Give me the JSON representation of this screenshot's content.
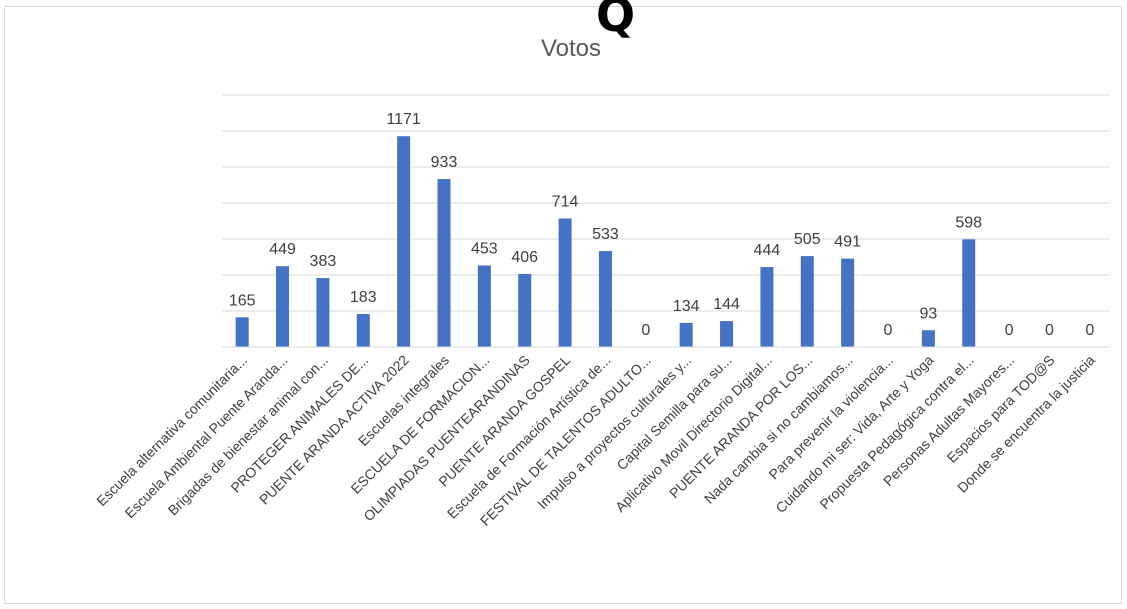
{
  "top_glyph": "Q",
  "chart_data": {
    "type": "bar",
    "title": "Votos",
    "xlabel": "",
    "ylabel": "",
    "ylim": [
      0,
      1400
    ],
    "grid": true,
    "legend": "none",
    "bar_color": "#4472c4",
    "categories": [
      "Escuela alternativa comunitaria...",
      "Escuela Ambiental Puente Aranda...",
      "Brigadas de bienestar animal con...",
      "PROTEGER ANIMALES DE...",
      "PUENTE ARANDA  ACTIVA 2022",
      "Escuelas integrales",
      "ESCUELA DE FORMACION...",
      "OLIMPIADAS PUENTEARANDINAS",
      "PUENTE ARANDA GOSPEL",
      "Escuela de Formación Artística de...",
      "FESTIVAL DE TALENTOS ADULTO...",
      "Impulso a proyectos culturales y...",
      "Capital Semilla para su...",
      "Aplicativo Movil Directorio Digital...",
      "PUENTE ARANDA POR LOS...",
      "Nada cambia si no cambiamos...",
      "Para prevenir la violencia...",
      "Cuidando mi ser: Vida, Arte y Yoga",
      "Propuesta Pedagógica contra el...",
      "Personas Adultas Mayores...",
      "Espacios para TOD@S",
      "Donde se encuentra la justicia"
    ],
    "values": [
      165,
      449,
      383,
      183,
      1171,
      933,
      453,
      406,
      714,
      533,
      0,
      134,
      144,
      444,
      505,
      491,
      0,
      93,
      598,
      0,
      0,
      0
    ]
  }
}
